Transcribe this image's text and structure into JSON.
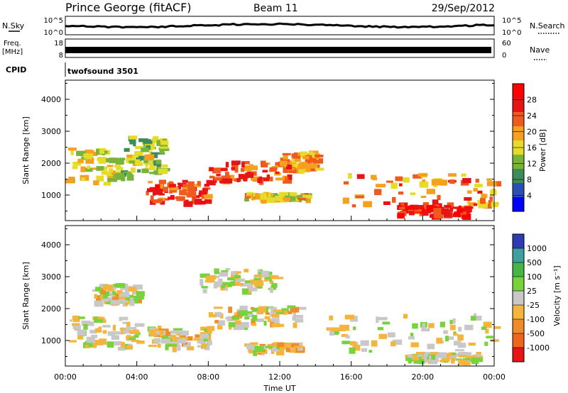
{
  "header": {
    "station": "Prince George (fitACF)",
    "beam": "Beam 11",
    "date": "29/Sep/2012"
  },
  "summary": {
    "nsky_label": "N.Sky",
    "nsearch_label": "N.Search",
    "freq_label_line1": "Freq.",
    "freq_label_line2": "[MHz]",
    "nave_label": "Nave",
    "cpid_label": "CPID",
    "cpid_value": "twofsound 3501",
    "nsky_ticks": [
      "10^5",
      "10^0"
    ],
    "nsearch_ticks": [
      "10^5",
      "10^0"
    ],
    "freq_ticks": [
      "18",
      "8"
    ],
    "nave_ticks": [
      "60",
      "0"
    ]
  },
  "colorbars": {
    "power": {
      "label": "Power [dB]",
      "ticks": [
        "28",
        "24",
        "20",
        "16",
        "12",
        "8",
        "4"
      ],
      "colors": [
        "#0000ff",
        "#2850b4",
        "#3c8c5a",
        "#78b43c",
        "#e6dc28",
        "#f5a01e",
        "#f05a1e",
        "#e61414",
        "#ff0000"
      ]
    },
    "velocity": {
      "label": "Velocity [m s⁻¹]",
      "ticks": [
        "1000",
        "500",
        "100",
        "25",
        "-25",
        "-100",
        "-500",
        "-1000"
      ],
      "colors": [
        "#2d3cb4",
        "#3ca0a0",
        "#46b446",
        "#78d23c",
        "#c8c8c8",
        "#f5b43c",
        "#f08c28",
        "#f0641e",
        "#e61414"
      ]
    }
  },
  "chart_data": [
    {
      "type": "heatmap",
      "title": "Power",
      "xlabel": "Time UT",
      "ylabel": "Slant Range [km]",
      "x_ticks": [
        "00:00",
        "04:00",
        "08:00",
        "12:00",
        "16:00",
        "20:00",
        "00:00"
      ],
      "y_ticks": [
        1000,
        2000,
        3000,
        4000
      ],
      "xlim": [
        0,
        24
      ],
      "ylim": [
        200,
        4600
      ],
      "zlabel": "Power [dB]",
      "z_range": [
        0,
        30
      ],
      "bands": [
        {
          "t0": 0.0,
          "t1": 3.5,
          "r0": 1400,
          "r1": 2500,
          "value": 14
        },
        {
          "t0": 3.5,
          "t1": 5.5,
          "r0": 1700,
          "r1": 2900,
          "value": 12
        },
        {
          "t0": 4.5,
          "t1": 8.0,
          "r0": 800,
          "r1": 1500,
          "value": 24
        },
        {
          "t0": 8.0,
          "t1": 12.5,
          "r0": 1500,
          "r1": 2100,
          "value": 22
        },
        {
          "t0": 10.0,
          "t1": 13.5,
          "r0": 900,
          "r1": 1100,
          "value": 16
        },
        {
          "t0": 12.0,
          "t1": 14.0,
          "r0": 1800,
          "r1": 2400,
          "value": 20
        },
        {
          "t0": 15.5,
          "t1": 24.0,
          "r0": 700,
          "r1": 1700,
          "value": 20
        },
        {
          "t0": 18.5,
          "t1": 22.5,
          "r0": 400,
          "r1": 700,
          "value": 26
        }
      ]
    },
    {
      "type": "heatmap",
      "title": "Velocity",
      "xlabel": "Time UT",
      "ylabel": "Slant Range [km]",
      "x_ticks": [
        "00:00",
        "04:00",
        "08:00",
        "12:00",
        "16:00",
        "20:00",
        "00:00"
      ],
      "y_ticks": [
        1000,
        2000,
        3000,
        4000
      ],
      "xlim": [
        0,
        24
      ],
      "ylim": [
        200,
        4600
      ],
      "zlabel": "Velocity [m s-1]",
      "z_range": [
        -1000,
        1000
      ],
      "bands": [
        {
          "t0": 0.0,
          "t1": 4.0,
          "r0": 800,
          "r1": 1800,
          "value": 0
        },
        {
          "t0": 1.5,
          "t1": 4.0,
          "r0": 2200,
          "r1": 2800,
          "value": -100
        },
        {
          "t0": 4.5,
          "t1": 8.0,
          "r0": 800,
          "r1": 1500,
          "value": -100
        },
        {
          "t0": 8.0,
          "t1": 13.0,
          "r0": 1500,
          "r1": 2100,
          "value": -100
        },
        {
          "t0": 7.5,
          "t1": 12.0,
          "r0": 2600,
          "r1": 3300,
          "value": 0
        },
        {
          "t0": 10.0,
          "t1": 13.0,
          "r0": 700,
          "r1": 950,
          "value": -100
        },
        {
          "t0": 14.5,
          "t1": 24.0,
          "r0": 700,
          "r1": 1900,
          "value": 0
        },
        {
          "t0": 19.0,
          "t1": 23.0,
          "r0": 400,
          "r1": 650,
          "value": 0
        }
      ]
    }
  ]
}
